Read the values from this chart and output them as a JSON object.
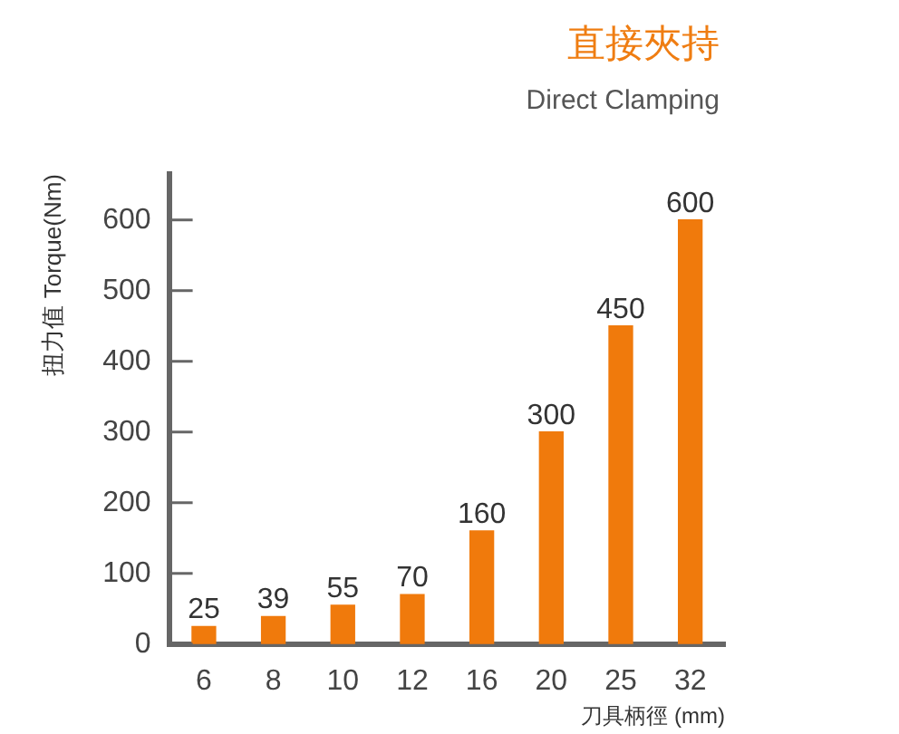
{
  "chart_data": {
    "type": "bar",
    "title": "直接夾持",
    "subtitle": "Direct Clamping",
    "xlabel": "刀具柄徑 (mm)",
    "ylabel": "扭力值 Torque(Nm)",
    "categories": [
      "6",
      "8",
      "10",
      "12",
      "16",
      "20",
      "25",
      "32"
    ],
    "values": [
      25,
      39,
      55,
      70,
      160,
      300,
      450,
      600
    ],
    "data_labels": true,
    "color": "#f07a0c",
    "ylim": [
      0,
      665
    ],
    "yticks": [
      0,
      100,
      200,
      300,
      400,
      500,
      600
    ]
  }
}
